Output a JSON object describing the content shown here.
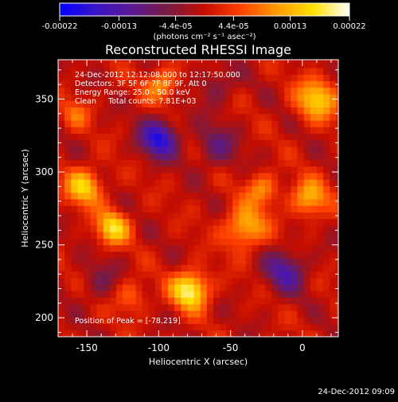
{
  "colorbar": {
    "tick_labels": [
      "-0.00022",
      "-0.00013",
      "-4.4e-05",
      "4.4e-05",
      "0.00013",
      "0.00022"
    ],
    "tick_values": [
      -0.00022,
      -0.00013,
      -4.4e-05,
      4.4e-05,
      0.00013,
      0.00022
    ],
    "range": [
      -0.00022,
      0.00022
    ],
    "units_label": "(photons cm⁻² s⁻¹ asec⁻²)",
    "colors": [
      "#0000ff",
      "#3a14c8",
      "#5a1a90",
      "#7a1a40",
      "#c40d00",
      "#ff4000",
      "#ff9a00",
      "#ffe000",
      "#ffffff"
    ]
  },
  "chart_data": {
    "type": "heatmap",
    "title": "Reconstructed RHESSI Image",
    "xlabel": "Heliocentric X (arcsec)",
    "ylabel": "Heliocentric Y (arcsec)",
    "xlim": [
      -170,
      25
    ],
    "ylim": [
      187,
      377
    ],
    "xticks": [
      -150,
      -100,
      -50,
      0
    ],
    "xtick_labels": [
      "-150",
      "-100",
      "-50",
      "0"
    ],
    "yticks": [
      200,
      250,
      300,
      350
    ],
    "ytick_labels": [
      "200",
      "250",
      "300",
      "350"
    ],
    "annotations": [
      "24-Dec-2012 12:12:08.000 to 12:17:50.000",
      "Detectors: 3F 5F 6F 7F 8F 9F, Att 0",
      "Energy Range: 25.0 - 50.0 keV",
      "Clean     Total counts: 7.81E+03"
    ],
    "peak_label": "Position of Peak = [-78,219]",
    "peak_position": [
      -78,
      219
    ],
    "grid": false,
    "colormap": "blue-purple-red-yellow-white",
    "sources": [
      {
        "x": -152,
        "y": 290,
        "amplitude": 0.00015,
        "sigma": 9
      },
      {
        "x": -132,
        "y": 262,
        "amplitude": 0.00016,
        "sigma": 8
      },
      {
        "x": -98,
        "y": 360,
        "amplitude": 0.00011,
        "sigma": 8
      },
      {
        "x": -78,
        "y": 219,
        "amplitude": 0.0002,
        "sigma": 9
      },
      {
        "x": -40,
        "y": 262,
        "amplitude": 0.00014,
        "sigma": 10
      },
      {
        "x": -28,
        "y": 288,
        "amplitude": 0.0001,
        "sigma": 8
      },
      {
        "x": 10,
        "y": 350,
        "amplitude": 0.00015,
        "sigma": 10
      },
      {
        "x": 5,
        "y": 282,
        "amplitude": 0.00013,
        "sigma": 9
      },
      {
        "x": -120,
        "y": 215,
        "amplitude": 8e-05,
        "sigma": 8
      },
      {
        "x": -158,
        "y": 340,
        "amplitude": 7e-05,
        "sigma": 7
      },
      {
        "x": -100,
        "y": 323,
        "amplitude": -0.00018,
        "sigma": 9
      },
      {
        "x": -12,
        "y": 232,
        "amplitude": -0.00012,
        "sigma": 10
      },
      {
        "x": -60,
        "y": 318,
        "amplitude": -8e-05,
        "sigma": 10
      },
      {
        "x": -140,
        "y": 225,
        "amplitude": -5e-05,
        "sigma": 10
      },
      {
        "x": -60,
        "y": 360,
        "amplitude": -6e-05,
        "sigma": 9
      }
    ]
  },
  "footer": {
    "timestamp": "24-Dec-2012 09:09"
  }
}
